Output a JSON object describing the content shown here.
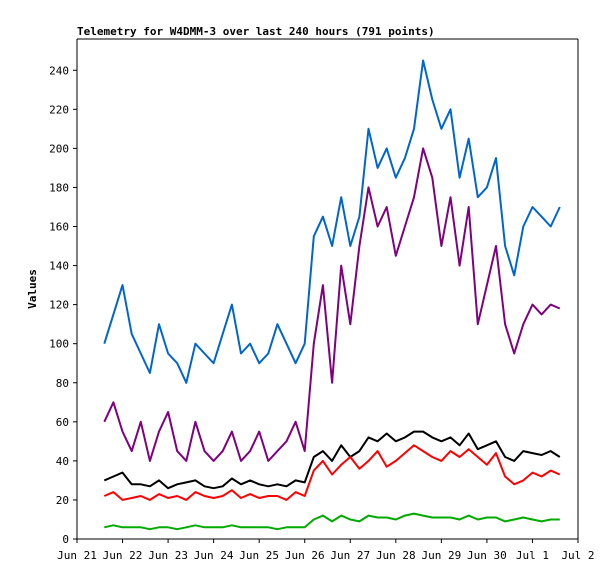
{
  "chart_data": {
    "type": "line",
    "title": "Telemetry for W4DMM-3 over last 240 hours (791 points)",
    "xlabel": "",
    "ylabel": "Values",
    "xlim": [
      0,
      11
    ],
    "ylim": [
      0,
      256
    ],
    "x_tick_labels": [
      "Jun 21",
      "Jun 22",
      "Jun 23",
      "Jun 24",
      "Jun 25",
      "Jun 26",
      "Jun 27",
      "Jun 28",
      "Jun 29",
      "Jun 30",
      "Jul 1",
      "Jul 2"
    ],
    "y_ticks": [
      0,
      20,
      40,
      60,
      80,
      100,
      120,
      140,
      160,
      180,
      200,
      220,
      240
    ],
    "grid": false,
    "legend": "none",
    "series_x_days": [
      0.6,
      0.8,
      1.0,
      1.2,
      1.4,
      1.6,
      1.8,
      2.0,
      2.2,
      2.4,
      2.6,
      2.8,
      3.0,
      3.2,
      3.4,
      3.6,
      3.8,
      4.0,
      4.2,
      4.4,
      4.6,
      4.8,
      5.0,
      5.2,
      5.4,
      5.6,
      5.8,
      6.0,
      6.2,
      6.4,
      6.6,
      6.8,
      7.0,
      7.2,
      7.4,
      7.6,
      7.8,
      8.0,
      8.2,
      8.4,
      8.6,
      8.8,
      9.0,
      9.2,
      9.4,
      9.6,
      9.8,
      10.0,
      10.2,
      10.4,
      10.6
    ],
    "series": [
      {
        "color": "#0066cc",
        "values": [
          100,
          115,
          130,
          105,
          95,
          85,
          110,
          95,
          90,
          80,
          100,
          95,
          90,
          105,
          120,
          95,
          100,
          90,
          95,
          110,
          100,
          90,
          100,
          155,
          165,
          150,
          175,
          150,
          165,
          210,
          190,
          200,
          185,
          195,
          210,
          245,
          225,
          210,
          220,
          185,
          205,
          175,
          180,
          195,
          150,
          135,
          160,
          170,
          165,
          160,
          170
        ]
      },
      {
        "color": "#800080",
        "values": [
          60,
          70,
          55,
          45,
          60,
          40,
          55,
          65,
          45,
          40,
          60,
          45,
          40,
          45,
          55,
          40,
          45,
          55,
          40,
          45,
          50,
          60,
          45,
          100,
          130,
          80,
          140,
          110,
          150,
          180,
          160,
          170,
          145,
          160,
          175,
          200,
          185,
          150,
          175,
          140,
          170,
          110,
          130,
          150,
          110,
          95,
          110,
          120,
          115,
          120,
          118
        ]
      },
      {
        "color": "#000000",
        "values": [
          30,
          32,
          34,
          28,
          28,
          27,
          30,
          26,
          28,
          29,
          30,
          27,
          26,
          27,
          31,
          28,
          30,
          28,
          27,
          28,
          27,
          30,
          29,
          42,
          45,
          40,
          48,
          42,
          45,
          52,
          50,
          54,
          50,
          52,
          55,
          55,
          52,
          50,
          52,
          48,
          54,
          46,
          48,
          50,
          42,
          40,
          45,
          44,
          43,
          45,
          42
        ]
      },
      {
        "color": "#ff0000",
        "values": [
          22,
          24,
          20,
          21,
          22,
          20,
          23,
          21,
          22,
          20,
          24,
          22,
          21,
          22,
          25,
          21,
          23,
          21,
          22,
          22,
          20,
          24,
          22,
          35,
          40,
          33,
          38,
          42,
          36,
          40,
          45,
          37,
          40,
          44,
          48,
          45,
          42,
          40,
          45,
          42,
          46,
          42,
          38,
          44,
          32,
          28,
          30,
          34,
          32,
          35,
          33
        ]
      },
      {
        "color": "#00aa00",
        "values": [
          6,
          7,
          6,
          6,
          6,
          5,
          6,
          6,
          5,
          6,
          7,
          6,
          6,
          6,
          7,
          6,
          6,
          6,
          6,
          5,
          6,
          6,
          6,
          10,
          12,
          9,
          12,
          10,
          9,
          12,
          11,
          11,
          10,
          12,
          13,
          12,
          11,
          11,
          11,
          10,
          12,
          10,
          11,
          11,
          9,
          10,
          11,
          10,
          9,
          10,
          10
        ]
      }
    ]
  }
}
